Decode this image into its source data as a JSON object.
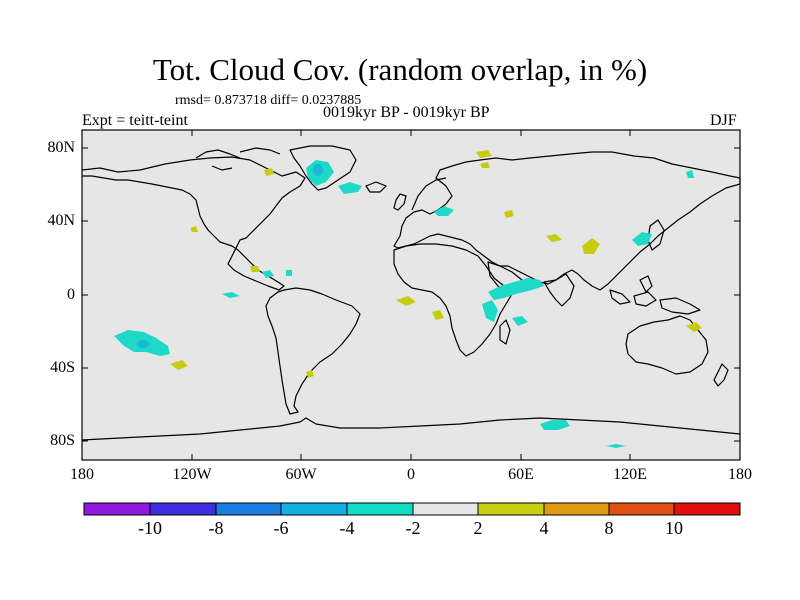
{
  "title": "Tot. Cloud Cov. (random overlap, in %)",
  "stats_line": "rmsd= 0.873718 diff= 0.0237885",
  "expt_label": "Expt = teitt-teint",
  "period_label": "0019kyr BP - 0019kyr BP",
  "season_label": "DJF",
  "lat_ticks": [
    "80N",
    "40N",
    "0",
    "40S",
    "80S"
  ],
  "lon_ticks": [
    "180",
    "120W",
    "60W",
    "0",
    "60E",
    "120E",
    "180"
  ],
  "colorbar": {
    "labels": [
      "-10",
      "-8",
      "-6",
      "-4",
      "-2",
      "2",
      "4",
      "8",
      "10"
    ],
    "colors": [
      "#8e1ae0",
      "#3d2ee0",
      "#1a7ee0",
      "#14b0e0",
      "#14dcc4",
      "#e6e6e6",
      "#c8d010",
      "#e09a10",
      "#e05010",
      "#e01010"
    ]
  },
  "colors": {
    "ocean_land_background": "#e6e6e6",
    "cyan_anomaly": "#1ed9c8",
    "cyan_core": "#19b8d6",
    "yellow_anomaly": "#c6cc10",
    "coastline": "#000000"
  }
}
